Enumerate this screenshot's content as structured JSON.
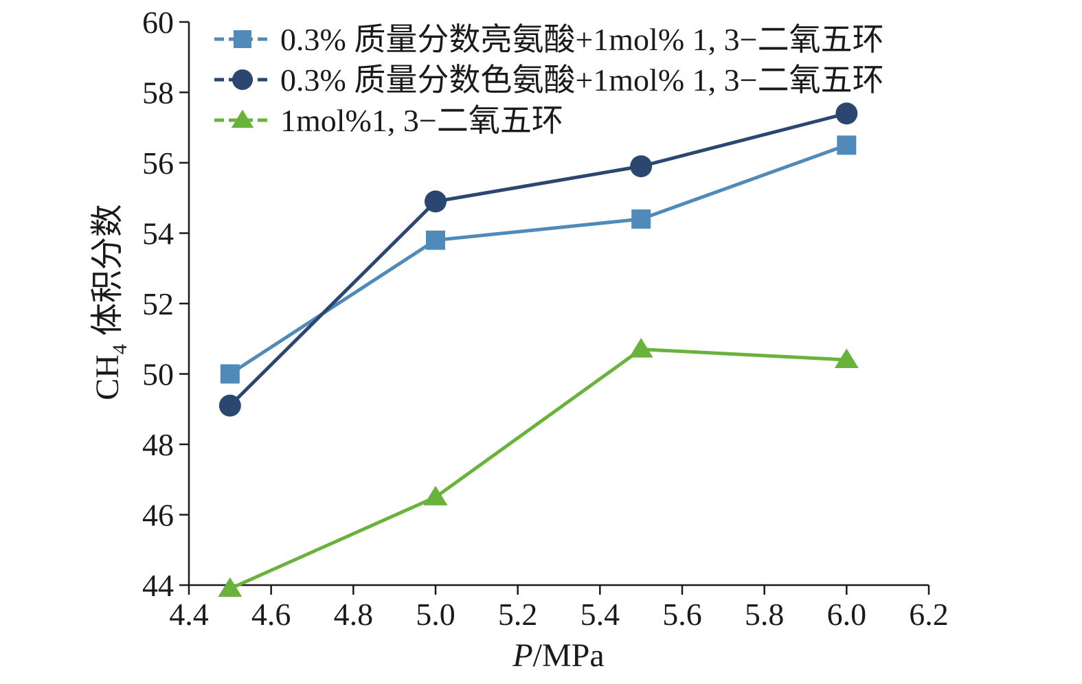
{
  "chart_data": {
    "type": "line",
    "xlabel": {
      "italic": "P",
      "rest": "/MPa"
    },
    "ylabel": {
      "pre": "CH",
      "sub": "4",
      "post": " 体积分数"
    },
    "xlim": [
      4.4,
      6.2
    ],
    "ylim": [
      44,
      60
    ],
    "xticks": [
      4.4,
      4.6,
      4.8,
      5.0,
      5.2,
      5.4,
      5.6,
      5.8,
      6.0,
      6.2
    ],
    "xtick_labels": [
      "4.4",
      "4.6",
      "4.8",
      "5.0",
      "5.2",
      "5.4",
      "5.6",
      "5.8",
      "6.0",
      "6.2"
    ],
    "yticks": [
      44,
      46,
      48,
      50,
      52,
      54,
      56,
      58,
      60
    ],
    "ytick_labels": [
      "44",
      "46",
      "48",
      "50",
      "52",
      "54",
      "56",
      "58",
      "60"
    ],
    "grid": false,
    "legend_position": "top-left",
    "x": [
      4.5,
      5.0,
      5.5,
      6.0
    ],
    "series": [
      {
        "name": "0.3% 质量分数亮氨酸+1mol% 1, 3−二氧五环",
        "marker": "square",
        "color": "#4f8ab8",
        "values": [
          50.0,
          53.8,
          54.4,
          56.5
        ]
      },
      {
        "name": "0.3% 质量分数色氨酸+1mol% 1, 3−二氧五环",
        "marker": "circle",
        "color": "#2b4770",
        "values": [
          49.1,
          54.9,
          55.9,
          57.4
        ]
      },
      {
        "name": "1mol%1, 3−二氧五环",
        "marker": "triangle",
        "color": "#69b23c",
        "values": [
          43.9,
          46.5,
          50.7,
          50.4
        ]
      }
    ]
  }
}
